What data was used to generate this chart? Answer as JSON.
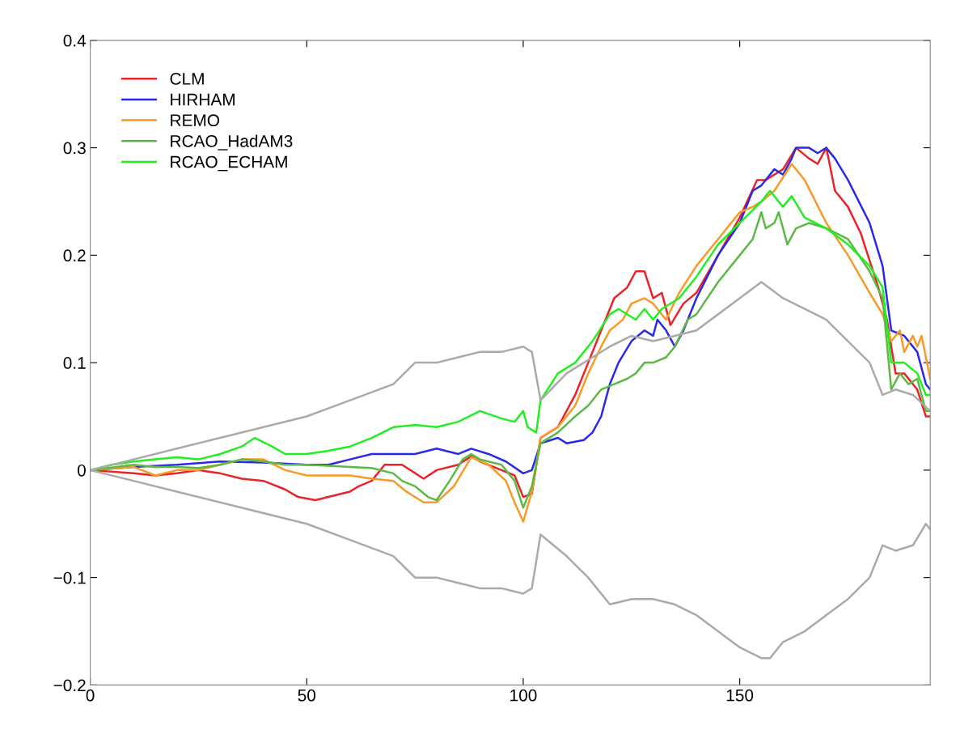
{
  "chart_data": {
    "type": "line",
    "xlim": [
      0,
      194
    ],
    "ylim": [
      -0.2,
      0.4
    ],
    "xticks": [
      0,
      50,
      100,
      150
    ],
    "yticks": [
      {
        "value": -0.2,
        "label": "−0.2"
      },
      {
        "value": -0.1,
        "label": "−0.1"
      },
      0,
      0.1,
      0.2,
      0.3,
      0.4
    ],
    "grid": false,
    "legend": "top left",
    "marker": "none",
    "line_style": "solid",
    "series": [
      {
        "name": "CLM",
        "color": "#e8232a",
        "x": [
          0,
          10,
          15,
          20,
          25,
          30,
          35,
          40,
          45,
          48,
          52,
          55,
          60,
          62,
          65,
          68,
          72,
          77,
          80,
          85,
          88,
          90,
          95,
          98,
          100,
          102,
          104,
          108,
          112,
          115,
          118,
          121,
          124,
          126,
          128,
          130,
          132,
          134,
          137,
          140,
          145,
          150,
          154,
          156,
          158,
          160,
          163,
          166,
          168,
          170,
          172,
          175,
          178,
          182,
          184,
          186,
          188,
          191,
          193,
          194
        ],
        "values": [
          0,
          -0.003,
          -0.005,
          -0.003,
          0,
          -0.003,
          -0.008,
          -0.01,
          -0.018,
          -0.025,
          -0.028,
          -0.025,
          -0.02,
          -0.015,
          -0.01,
          0.005,
          0.005,
          -0.008,
          0,
          0.005,
          0.013,
          0.008,
          0,
          -0.005,
          -0.025,
          -0.022,
          0.03,
          0.04,
          0.07,
          0.1,
          0.13,
          0.16,
          0.17,
          0.185,
          0.185,
          0.16,
          0.165,
          0.135,
          0.155,
          0.165,
          0.2,
          0.235,
          0.27,
          0.27,
          0.275,
          0.28,
          0.3,
          0.29,
          0.285,
          0.3,
          0.26,
          0.245,
          0.22,
          0.17,
          0.14,
          0.09,
          0.09,
          0.075,
          0.05,
          0.05
        ]
      },
      {
        "name": "HIRHAM",
        "color": "#2a2ae6",
        "x": [
          0,
          10,
          20,
          30,
          40,
          50,
          55,
          60,
          65,
          70,
          75,
          80,
          85,
          88,
          92,
          96,
          100,
          102,
          104,
          108,
          110,
          114,
          116,
          118,
          120,
          122,
          125,
          128,
          130,
          131,
          133,
          135,
          137,
          140,
          145,
          150,
          153,
          155,
          158,
          160,
          162,
          163,
          166,
          168,
          170,
          172,
          175,
          180,
          183,
          185,
          188,
          191,
          193,
          194
        ],
        "values": [
          0,
          0.003,
          0.005,
          0.008,
          0.007,
          0.005,
          0.005,
          0.01,
          0.015,
          0.015,
          0.015,
          0.02,
          0.015,
          0.02,
          0.015,
          0.008,
          -0.003,
          0,
          0.025,
          0.03,
          0.025,
          0.028,
          0.035,
          0.05,
          0.08,
          0.1,
          0.12,
          0.13,
          0.125,
          0.14,
          0.13,
          0.115,
          0.13,
          0.16,
          0.2,
          0.23,
          0.26,
          0.265,
          0.28,
          0.275,
          0.29,
          0.3,
          0.3,
          0.295,
          0.3,
          0.29,
          0.27,
          0.23,
          0.19,
          0.13,
          0.125,
          0.11,
          0.08,
          0.075
        ]
      },
      {
        "name": "REMO",
        "color": "#f79a27",
        "x": [
          0,
          10,
          15,
          20,
          25,
          30,
          35,
          40,
          45,
          50,
          55,
          60,
          65,
          70,
          73,
          77,
          80,
          84,
          88,
          92,
          96,
          98,
          100,
          102,
          104,
          108,
          112,
          115,
          118,
          120,
          123,
          125,
          128,
          130,
          133,
          136,
          140,
          145,
          150,
          153,
          155,
          158,
          162,
          165,
          170,
          175,
          180,
          183,
          185,
          187,
          188,
          190,
          191,
          192,
          194
        ],
        "values": [
          0,
          0.003,
          -0.005,
          0,
          0,
          0.005,
          0.01,
          0.01,
          0,
          -0.005,
          -0.005,
          -0.005,
          -0.008,
          -0.01,
          -0.02,
          -0.03,
          -0.03,
          -0.015,
          0.012,
          0.005,
          -0.01,
          -0.03,
          -0.048,
          -0.02,
          0.03,
          0.04,
          0.06,
          0.09,
          0.115,
          0.13,
          0.14,
          0.155,
          0.16,
          0.155,
          0.14,
          0.165,
          0.19,
          0.215,
          0.24,
          0.245,
          0.25,
          0.26,
          0.285,
          0.27,
          0.23,
          0.2,
          0.165,
          0.145,
          0.12,
          0.13,
          0.11,
          0.125,
          0.115,
          0.125,
          0.085
        ]
      },
      {
        "name": "RCAO_HadAM3",
        "color": "#5cb946",
        "x": [
          0,
          10,
          15,
          20,
          25,
          30,
          35,
          40,
          45,
          50,
          55,
          60,
          65,
          70,
          72,
          75,
          78,
          80,
          83,
          86,
          88,
          90,
          95,
          98,
          100,
          102,
          104,
          108,
          112,
          115,
          118,
          121,
          124,
          126,
          128,
          130,
          133,
          135,
          138,
          140,
          145,
          150,
          153,
          155,
          156,
          158,
          159,
          161,
          163,
          166,
          170,
          175,
          180,
          183,
          185,
          187,
          189,
          191,
          193,
          194
        ],
        "values": [
          0,
          0.005,
          0.003,
          0.003,
          0.002,
          0.005,
          0.01,
          0.008,
          0.005,
          0.005,
          0.004,
          0.003,
          0.002,
          -0.003,
          -0.01,
          -0.015,
          -0.025,
          -0.028,
          -0.01,
          0.01,
          0.015,
          0.01,
          0.005,
          -0.01,
          -0.035,
          -0.015,
          0.025,
          0.035,
          0.05,
          0.06,
          0.075,
          0.08,
          0.085,
          0.09,
          0.1,
          0.1,
          0.105,
          0.115,
          0.14,
          0.145,
          0.175,
          0.2,
          0.215,
          0.24,
          0.225,
          0.23,
          0.24,
          0.21,
          0.225,
          0.23,
          0.225,
          0.215,
          0.185,
          0.16,
          0.075,
          0.09,
          0.08,
          0.085,
          0.055,
          0.055
        ]
      },
      {
        "name": "RCAO_ECHAM",
        "color": "#22ee22",
        "x": [
          0,
          5,
          10,
          15,
          20,
          25,
          30,
          35,
          38,
          42,
          45,
          50,
          55,
          60,
          65,
          70,
          75,
          80,
          85,
          90,
          95,
          98,
          100,
          101,
          103,
          104,
          108,
          112,
          116,
          120,
          122,
          126,
          128,
          130,
          132,
          136,
          140,
          145,
          150,
          155,
          157,
          160,
          162,
          165,
          170,
          175,
          180,
          183,
          185,
          188,
          191,
          193,
          194
        ],
        "values": [
          0,
          0.005,
          0.008,
          0.01,
          0.012,
          0.01,
          0.015,
          0.022,
          0.03,
          0.022,
          0.015,
          0.015,
          0.018,
          0.022,
          0.03,
          0.04,
          0.042,
          0.04,
          0.045,
          0.055,
          0.048,
          0.045,
          0.055,
          0.04,
          0.035,
          0.065,
          0.09,
          0.1,
          0.12,
          0.145,
          0.15,
          0.14,
          0.15,
          0.14,
          0.15,
          0.16,
          0.18,
          0.21,
          0.23,
          0.25,
          0.26,
          0.245,
          0.255,
          0.235,
          0.225,
          0.21,
          0.19,
          0.17,
          0.1,
          0.1,
          0.09,
          0.07,
          0.07
        ]
      },
      {
        "color": "#aaaaaa",
        "x": [
          0,
          10,
          20,
          30,
          40,
          50,
          60,
          70,
          75,
          80,
          85,
          90,
          95,
          100,
          102,
          104,
          110,
          120,
          125,
          130,
          135,
          140,
          145,
          150,
          155,
          160,
          165,
          170,
          175,
          180,
          183,
          186,
          190,
          194
        ],
        "values": [
          0,
          0.01,
          0.02,
          0.03,
          0.04,
          0.05,
          0.065,
          0.08,
          0.1,
          0.1,
          0.105,
          0.11,
          0.11,
          0.115,
          0.11,
          0.065,
          0.09,
          0.115,
          0.125,
          0.12,
          0.125,
          0.13,
          0.145,
          0.16,
          0.175,
          0.16,
          0.15,
          0.14,
          0.12,
          0.1,
          0.07,
          0.075,
          0.07,
          0.055
        ]
      },
      {
        "color": "#aaaaaa",
        "x": [
          0,
          10,
          20,
          30,
          40,
          50,
          60,
          70,
          75,
          80,
          85,
          90,
          95,
          100,
          102,
          104,
          110,
          115,
          120,
          125,
          130,
          135,
          140,
          145,
          150,
          155,
          157,
          160,
          165,
          170,
          175,
          180,
          183,
          186,
          190,
          193,
          194
        ],
        "values": [
          0,
          -0.01,
          -0.02,
          -0.03,
          -0.04,
          -0.05,
          -0.065,
          -0.08,
          -0.1,
          -0.1,
          -0.105,
          -0.11,
          -0.11,
          -0.115,
          -0.11,
          -0.06,
          -0.08,
          -0.1,
          -0.125,
          -0.12,
          -0.12,
          -0.125,
          -0.135,
          -0.15,
          -0.165,
          -0.175,
          -0.175,
          -0.16,
          -0.15,
          -0.135,
          -0.12,
          -0.1,
          -0.07,
          -0.075,
          -0.07,
          -0.05,
          -0.055
        ]
      }
    ]
  }
}
